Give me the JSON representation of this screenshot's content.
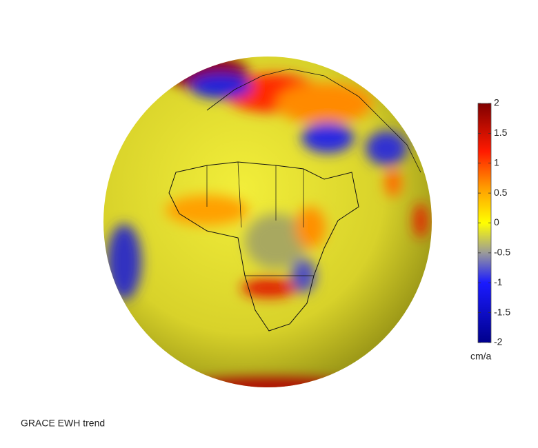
{
  "title": "GRACE EWH trend",
  "colorbar": {
    "label": "cm/a",
    "lim": [
      -2,
      2
    ],
    "ticks": [
      -2,
      -1.5,
      -1,
      -0.5,
      0,
      0.5,
      1,
      1.5,
      2
    ]
  }
}
